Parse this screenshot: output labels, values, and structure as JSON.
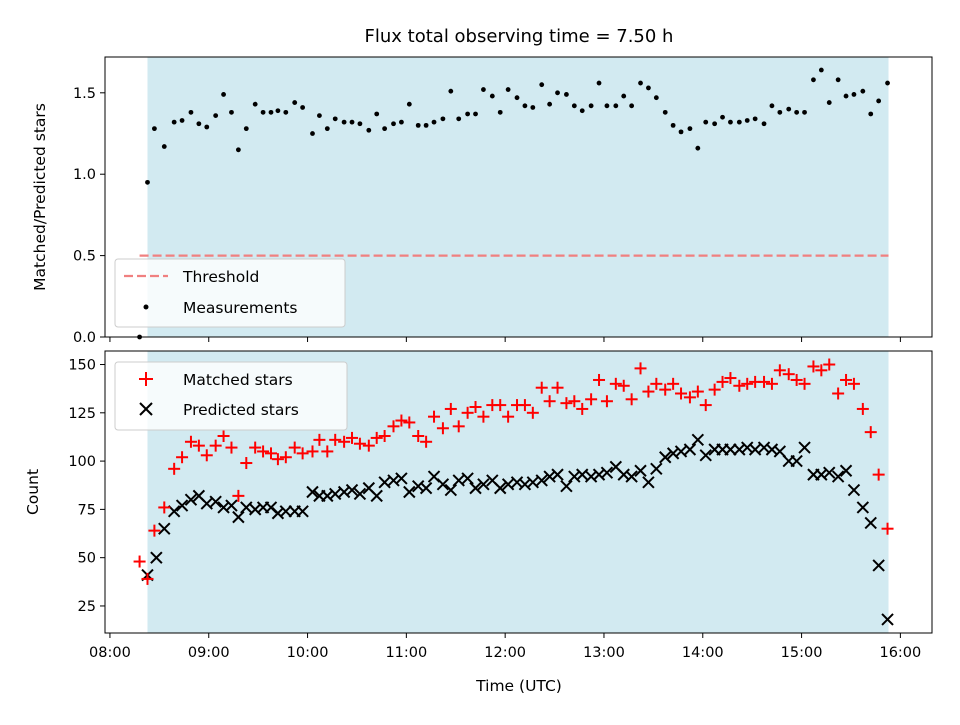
{
  "chart_data": [
    {
      "type": "scatter",
      "title": "Flux total observing time = 7.50 h",
      "ylabel": "Matched/Predicted stars",
      "xlabel": "",
      "xlim_hours": [
        7.95,
        16.32
      ],
      "ylim": [
        0.0,
        1.72
      ],
      "yticks": [
        0.0,
        0.5,
        1.0,
        1.5
      ],
      "ytick_labels": [
        "0.0",
        "0.5",
        "1.0",
        "1.5"
      ],
      "shaded_span_hours": [
        8.38,
        15.88
      ],
      "shade_color": "#add8e6",
      "threshold": {
        "label": "Threshold",
        "value": 0.5,
        "start_hour": 8.3,
        "end_hour": 15.88,
        "color": "#f08080"
      },
      "series": [
        {
          "name": "Measurements",
          "color": "#000000",
          "x": [
            8.3,
            8.38,
            8.45,
            8.55,
            8.65,
            8.73,
            8.82,
            8.9,
            8.98,
            9.07,
            9.15,
            9.23,
            9.3,
            9.38,
            9.47,
            9.55,
            9.63,
            9.7,
            9.78,
            9.87,
            9.95,
            10.05,
            10.12,
            10.2,
            10.28,
            10.37,
            10.45,
            10.53,
            10.62,
            10.7,
            10.78,
            10.87,
            10.95,
            11.03,
            11.12,
            11.2,
            11.28,
            11.37,
            11.45,
            11.53,
            11.62,
            11.7,
            11.78,
            11.87,
            11.95,
            12.03,
            12.12,
            12.2,
            12.28,
            12.37,
            12.45,
            12.53,
            12.62,
            12.7,
            12.78,
            12.87,
            12.95,
            13.03,
            13.12,
            13.2,
            13.28,
            13.37,
            13.45,
            13.53,
            13.62,
            13.7,
            13.78,
            13.87,
            13.95,
            14.03,
            14.12,
            14.2,
            14.28,
            14.37,
            14.45,
            14.53,
            14.62,
            14.7,
            14.78,
            14.87,
            14.95,
            15.03,
            15.12,
            15.2,
            15.28,
            15.37,
            15.45,
            15.53,
            15.62,
            15.7,
            15.78,
            15.87
          ],
          "y": [
            0.0,
            0.95,
            1.28,
            1.17,
            1.32,
            1.33,
            1.38,
            1.31,
            1.29,
            1.36,
            1.49,
            1.38,
            1.15,
            1.28,
            1.43,
            1.38,
            1.38,
            1.39,
            1.38,
            1.44,
            1.41,
            1.25,
            1.36,
            1.28,
            1.34,
            1.32,
            1.32,
            1.31,
            1.27,
            1.37,
            1.28,
            1.31,
            1.32,
            1.43,
            1.3,
            1.3,
            1.32,
            1.34,
            1.51,
            1.34,
            1.37,
            1.37,
            1.52,
            1.48,
            1.38,
            1.52,
            1.47,
            1.42,
            1.41,
            1.55,
            1.43,
            1.5,
            1.49,
            1.42,
            1.39,
            1.42,
            1.56,
            1.42,
            1.42,
            1.48,
            1.42,
            1.56,
            1.53,
            1.47,
            1.38,
            1.3,
            1.26,
            1.28,
            1.16,
            1.32,
            1.31,
            1.35,
            1.32,
            1.32,
            1.33,
            1.34,
            1.31,
            1.42,
            1.38,
            1.4,
            1.38,
            1.38,
            1.58,
            1.64,
            1.44,
            1.58,
            1.48,
            1.49,
            1.51,
            1.37,
            1.45,
            1.56
          ]
        }
      ],
      "legend": [
        "Threshold",
        "Measurements"
      ]
    },
    {
      "type": "scatter",
      "ylabel": "Count",
      "xlabel": "Time (UTC)",
      "xlim_hours": [
        7.95,
        16.32
      ],
      "ylim": [
        11,
        157
      ],
      "yticks": [
        25,
        50,
        75,
        100,
        125,
        150
      ],
      "ytick_labels": [
        "25",
        "50",
        "75",
        "100",
        "125",
        "150"
      ],
      "xticks_hours": [
        8,
        9,
        10,
        11,
        12,
        13,
        14,
        15,
        16
      ],
      "xtick_labels": [
        "08:00",
        "09:00",
        "10:00",
        "11:00",
        "12:00",
        "13:00",
        "14:00",
        "15:00",
        "16:00"
      ],
      "shaded_span_hours": [
        8.38,
        15.88
      ],
      "shade_color": "#add8e6",
      "series": [
        {
          "name": "Matched stars",
          "marker": "+",
          "color": "#ff0000",
          "x": [
            8.3,
            8.38,
            8.45,
            8.55,
            8.65,
            8.73,
            8.82,
            8.9,
            8.98,
            9.07,
            9.15,
            9.23,
            9.3,
            9.38,
            9.47,
            9.55,
            9.63,
            9.7,
            9.78,
            9.87,
            9.95,
            10.05,
            10.12,
            10.2,
            10.28,
            10.37,
            10.45,
            10.53,
            10.62,
            10.7,
            10.78,
            10.87,
            10.95,
            11.03,
            11.12,
            11.2,
            11.28,
            11.37,
            11.45,
            11.53,
            11.62,
            11.7,
            11.78,
            11.87,
            11.95,
            12.03,
            12.12,
            12.2,
            12.28,
            12.37,
            12.45,
            12.53,
            12.62,
            12.7,
            12.78,
            12.87,
            12.95,
            13.03,
            13.12,
            13.2,
            13.28,
            13.37,
            13.45,
            13.53,
            13.62,
            13.7,
            13.78,
            13.87,
            13.95,
            14.03,
            14.12,
            14.2,
            14.28,
            14.37,
            14.45,
            14.53,
            14.62,
            14.7,
            14.78,
            14.87,
            14.95,
            15.03,
            15.12,
            15.2,
            15.28,
            15.37,
            15.45,
            15.53,
            15.62,
            15.7,
            15.78,
            15.87
          ],
          "y": [
            48,
            39,
            64,
            76,
            96,
            102,
            110,
            108,
            103,
            108,
            113,
            107,
            82,
            99,
            107,
            105,
            104,
            101,
            102,
            107,
            104,
            105,
            111,
            105,
            111,
            110,
            112,
            109,
            108,
            112,
            113,
            118,
            121,
            120,
            113,
            110,
            123,
            117,
            127,
            118,
            125,
            128,
            123,
            129,
            129,
            123,
            129,
            129,
            125,
            138,
            131,
            138,
            130,
            131,
            127,
            132,
            142,
            131,
            140,
            139,
            132,
            148,
            136,
            140,
            137,
            140,
            135,
            133,
            136,
            129,
            137,
            141,
            143,
            139,
            140,
            141,
            141,
            140,
            147,
            145,
            142,
            140,
            149,
            147,
            150,
            135,
            142,
            140,
            127,
            115,
            93,
            65
          ]
        },
        {
          "name": "Predicted stars",
          "marker": "x",
          "color": "#000000",
          "x": [
            8.38,
            8.47,
            8.55,
            8.65,
            8.73,
            8.82,
            8.9,
            8.98,
            9.07,
            9.15,
            9.23,
            9.3,
            9.38,
            9.47,
            9.55,
            9.63,
            9.7,
            9.78,
            9.87,
            9.95,
            10.05,
            10.12,
            10.2,
            10.28,
            10.37,
            10.45,
            10.53,
            10.62,
            10.7,
            10.78,
            10.87,
            10.95,
            11.03,
            11.12,
            11.2,
            11.28,
            11.37,
            11.45,
            11.53,
            11.62,
            11.7,
            11.78,
            11.87,
            11.95,
            12.03,
            12.12,
            12.2,
            12.28,
            12.37,
            12.45,
            12.53,
            12.62,
            12.7,
            12.78,
            12.87,
            12.95,
            13.03,
            13.12,
            13.2,
            13.28,
            13.37,
            13.45,
            13.53,
            13.62,
            13.7,
            13.78,
            13.87,
            13.95,
            14.03,
            14.12,
            14.2,
            14.28,
            14.37,
            14.45,
            14.53,
            14.62,
            14.7,
            14.78,
            14.87,
            14.95,
            15.03,
            15.12,
            15.2,
            15.28,
            15.37,
            15.45,
            15.53,
            15.62,
            15.7,
            15.78,
            15.87
          ],
          "y": [
            41,
            50,
            65,
            74,
            77,
            80,
            82,
            78,
            79,
            76,
            77,
            71,
            76,
            75,
            76,
            76,
            73,
            74,
            74,
            74,
            84,
            82,
            82,
            83,
            84,
            85,
            83,
            86,
            82,
            89,
            90,
            91,
            84,
            87,
            86,
            92,
            88,
            85,
            90,
            91,
            86,
            88,
            90,
            86,
            88,
            89,
            88,
            89,
            90,
            92,
            93,
            87,
            92,
            93,
            92,
            93,
            94,
            97,
            93,
            92,
            95,
            89,
            96,
            102,
            104,
            105,
            106,
            111,
            103,
            106,
            106,
            106,
            106,
            107,
            106,
            107,
            106,
            105,
            100,
            100,
            107,
            93,
            93,
            94,
            92,
            95,
            85,
            76,
            68,
            46,
            18
          ]
        }
      ],
      "legend": [
        "Matched stars",
        "Predicted stars"
      ]
    }
  ]
}
